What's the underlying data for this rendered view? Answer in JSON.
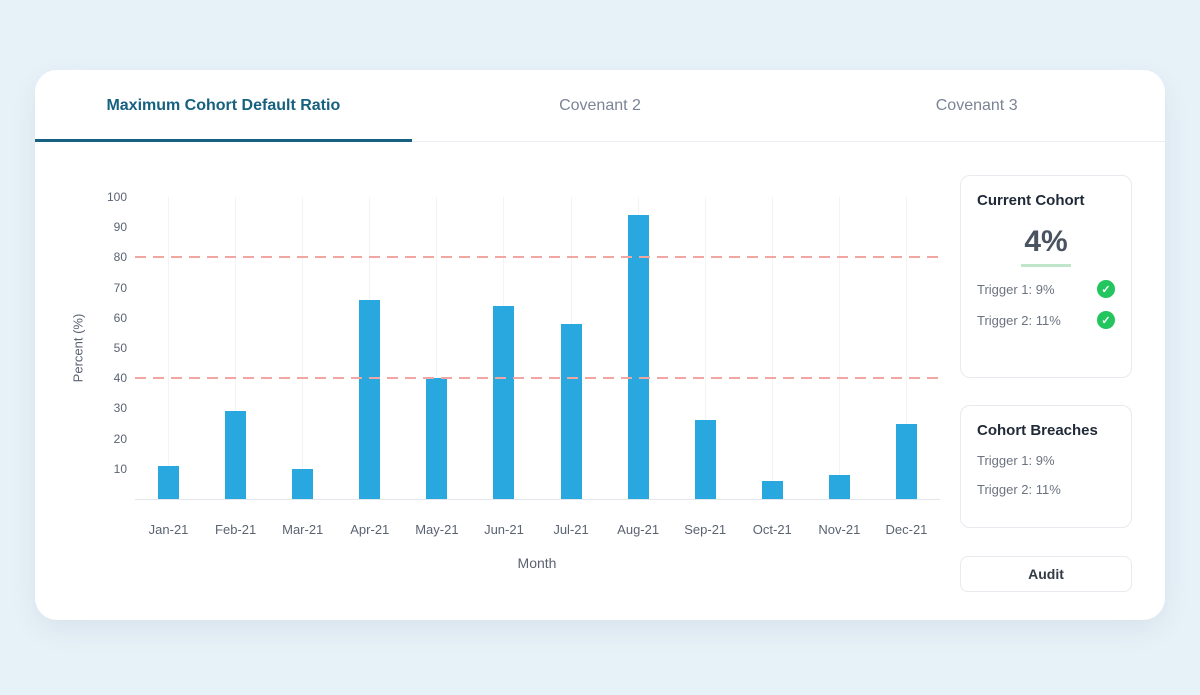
{
  "colors": {
    "background": "#e7f1f8",
    "accent": "#16617f",
    "bar": "#29a8df",
    "threshold": "#f2a6a1",
    "success": "#22c55e"
  },
  "tabs": [
    {
      "label": "Maximum Cohort Default Ratio",
      "active": true
    },
    {
      "label": "Covenant 2",
      "active": false
    },
    {
      "label": "Covenant 3",
      "active": false
    }
  ],
  "chart_data": {
    "type": "bar",
    "title": "",
    "categories": [
      "Jan-21",
      "Feb-21",
      "Mar-21",
      "Apr-21",
      "May-21",
      "Jun-21",
      "Jul-21",
      "Aug-21",
      "Sep-21",
      "Oct-21",
      "Nov-21",
      "Dec-21"
    ],
    "values": [
      11,
      29,
      10,
      66,
      40,
      64,
      58,
      94,
      26,
      6,
      8,
      25
    ],
    "xlabel": "Month",
    "ylabel": "Percent (%)",
    "ylim": [
      0,
      100
    ],
    "yticks": [
      10,
      20,
      30,
      40,
      50,
      60,
      70,
      80,
      90,
      100
    ],
    "threshold_lines": [
      40,
      80
    ],
    "grid": "vertical",
    "legend": "none"
  },
  "side_panel": {
    "current_cohort": {
      "title": "Current Cohort",
      "value": "4%",
      "triggers": [
        {
          "label": "Trigger 1: 9%",
          "status": "ok"
        },
        {
          "label": "Trigger 2: 11%",
          "status": "ok"
        }
      ]
    },
    "cohort_breaches": {
      "title": "Cohort Breaches",
      "items": [
        {
          "label": "Trigger 1: 9%"
        },
        {
          "label": "Trigger 2: 11%"
        }
      ]
    },
    "audit_button": "Audit"
  },
  "icons": {
    "check_glyph": "✓"
  }
}
